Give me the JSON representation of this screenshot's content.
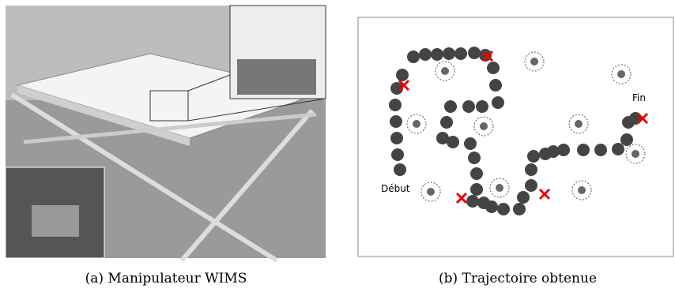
{
  "figure": {
    "panel_a": {
      "caption": "(a) Manipulateur WIMS"
    },
    "panel_b": {
      "caption": "(b) Trajectoire obtenue",
      "start_label": "Début",
      "end_label": "Fin"
    }
  }
}
